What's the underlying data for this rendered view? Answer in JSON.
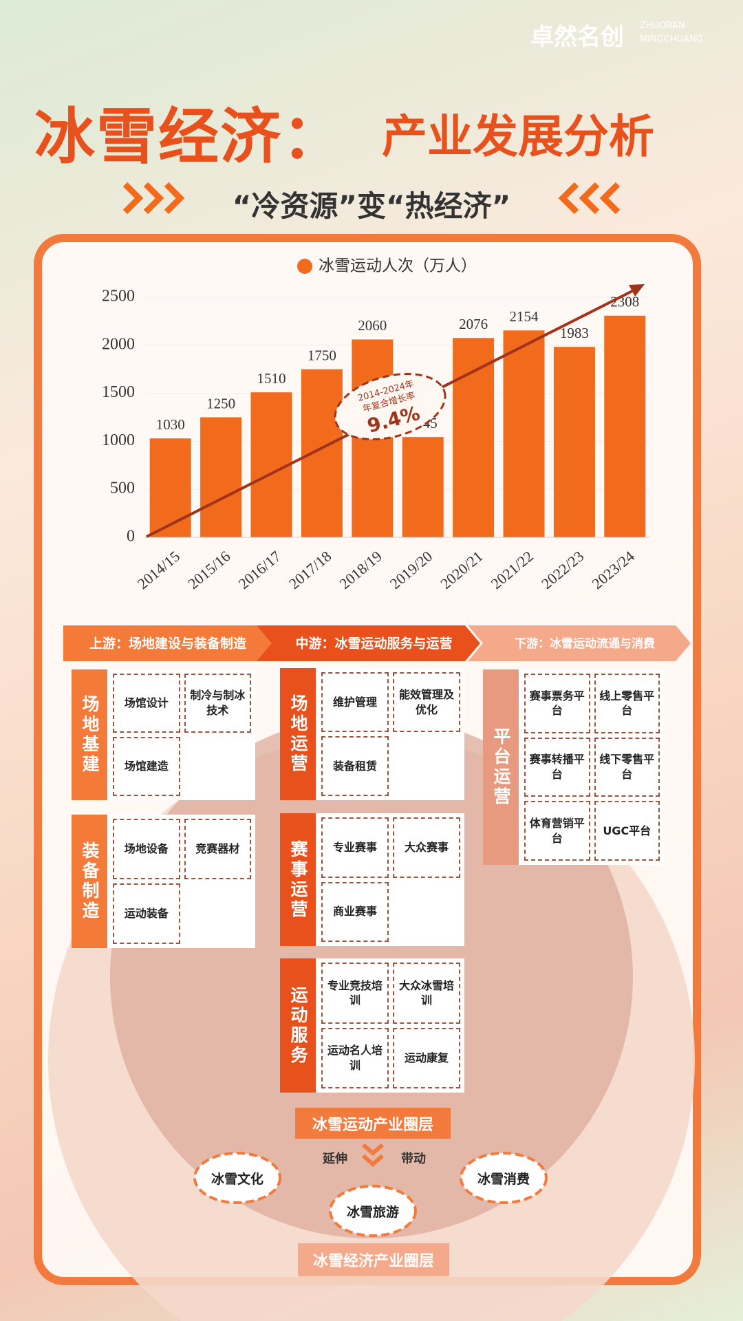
{
  "brand": {
    "name": "卓然名创",
    "latin": [
      "ZHUORAN",
      "MINGCHUANG"
    ]
  },
  "header": {
    "title_main": "冰雪经济：",
    "title_sub": "产业发展分析",
    "tagline": "“冷资源”变“热经济”"
  },
  "chart_data": {
    "type": "bar",
    "categories": [
      "2014/15",
      "2015/16",
      "2016/17",
      "2017/18",
      "2018/19",
      "2019/20",
      "2020/21",
      "2021/22",
      "2022/23",
      "2023/24"
    ],
    "series": [
      {
        "name": "冰雪运动人次（万人）",
        "color": "#f26b1d",
        "values": [
          1030,
          1250,
          1510,
          1750,
          2060,
          1045,
          2076,
          2154,
          1983,
          2308
        ]
      }
    ],
    "ylim": [
      0,
      2500
    ],
    "yticks": [
      0,
      500,
      1000,
      1500,
      2000,
      2500
    ],
    "grid": true,
    "legend": "top",
    "annotation": {
      "lines": [
        "2014-2024年",
        "年复合增长率"
      ],
      "value": "9.4%"
    }
  },
  "industry_chain": {
    "stages": [
      "上游：场地建设与装备制造",
      "中游：冰雪运动服务与运营",
      "下游：冰雪运动流通与消费"
    ],
    "upstream": [
      {
        "label": "场地基建",
        "items": [
          "场馆设计",
          "制冷与制冰技术",
          "场馆建造"
        ]
      },
      {
        "label": "装备制造",
        "items": [
          "场地设备",
          "竞赛器材",
          "运动装备"
        ]
      }
    ],
    "midstream": [
      {
        "label": "场地运营",
        "items": [
          "维护管理",
          "能效管理及优化",
          "装备租赁"
        ]
      },
      {
        "label": "赛事运营",
        "items": [
          "专业赛事",
          "大众赛事",
          "商业赛事"
        ]
      },
      {
        "label": "运动服务",
        "items": [
          "专业竞技培训",
          "大众冰雪培训",
          "运动名人培训",
          "运动康复"
        ]
      }
    ],
    "downstream": [
      {
        "label": "平台运营",
        "items": [
          "赛事票务平台",
          "线上零售平台",
          "赛事转播平台",
          "线下零售平台",
          "体育营销平台",
          "UGC平台"
        ]
      }
    ]
  },
  "circles": {
    "inner": "冰雪运动产业圈层",
    "extend": "延伸",
    "drive": "带动",
    "items": [
      "冰雪文化",
      "冰雪旅游",
      "冰雪消费"
    ],
    "outer": "冰雪经济产业圈层"
  }
}
